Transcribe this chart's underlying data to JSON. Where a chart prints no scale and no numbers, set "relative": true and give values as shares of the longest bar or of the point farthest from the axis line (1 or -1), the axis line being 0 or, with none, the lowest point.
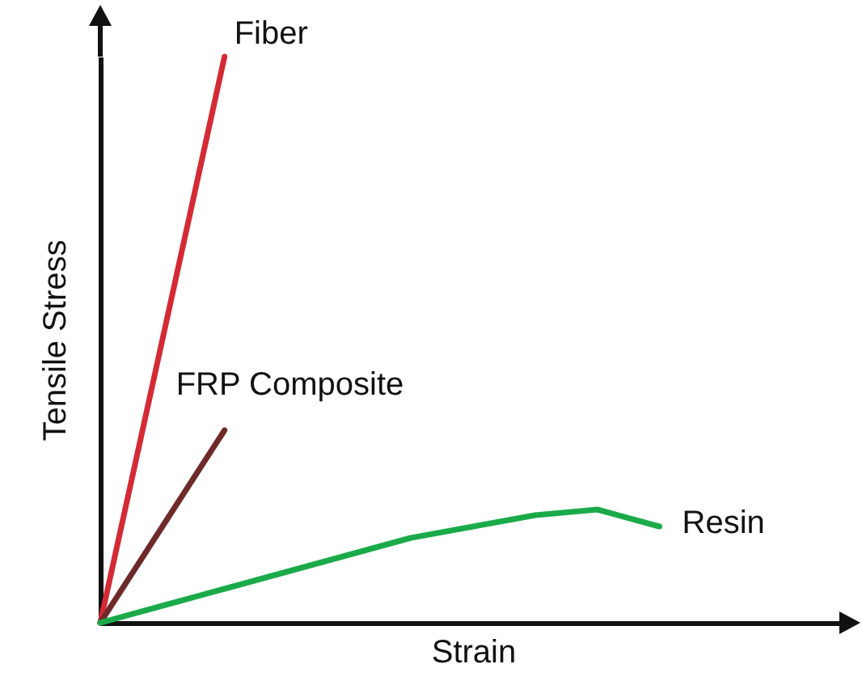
{
  "chart_data": {
    "type": "line",
    "relative": true,
    "xlabel": "Strain",
    "ylabel": "Tensile Stress",
    "grid": false,
    "categories": [
      null,
      null,
      null,
      null,
      null,
      null,
      null,
      null,
      null,
      null,
      null,
      null,
      null
    ],
    "series": [
      {
        "name": "Fiber",
        "color": "#d42a35",
        "values": [
          0,
          0.5,
          1,
          null,
          null,
          null,
          null,
          null,
          null,
          null,
          null,
          null,
          null
        ]
      },
      {
        "name": "FRP Composite",
        "color": "#6e2a2a",
        "values": [
          0,
          0.17,
          0.34,
          null,
          null,
          null,
          null,
          null,
          null,
          null,
          null,
          null,
          null
        ]
      },
      {
        "name": "Resin",
        "color": "#1aaa4a",
        "values": [
          0,
          0.03,
          0.06,
          0.09,
          0.12,
          0.15,
          0.17,
          0.19,
          0.2,
          0.17,
          null,
          null,
          null
        ]
      }
    ]
  }
}
